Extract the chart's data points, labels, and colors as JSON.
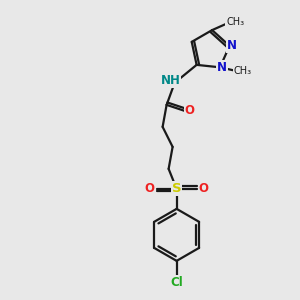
{
  "background_color": "#e8e8e8",
  "bond_color": "#1a1a1a",
  "bond_width": 1.6,
  "atom_colors": {
    "Cl": "#22aa22",
    "S": "#cccc00",
    "O": "#ee2222",
    "N": "#1111cc",
    "NH": "#008888"
  },
  "figsize": [
    3.0,
    3.0
  ],
  "dpi": 100
}
